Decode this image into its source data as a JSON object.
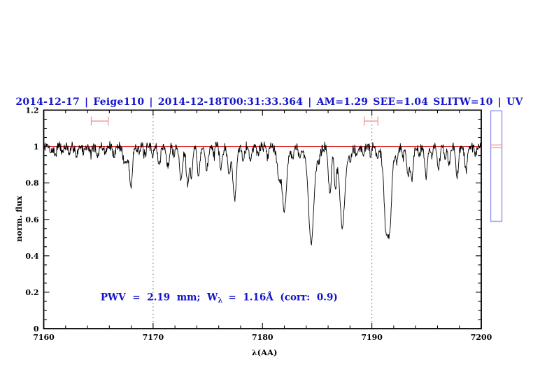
{
  "header": {
    "title": "2014-12-17 | Feige110 | 2014-12-18T00:31:33.364 | AM=1.29 SEE=1.04 SLITW=10 | UV",
    "title_color": "#1414cc"
  },
  "chart_data": {
    "type": "line",
    "title": "2014-12-17 | Feige110 | 2014-12-18T00:31:33.364 | AM=1.29 SEE=1.04 SLITW=10 | UV",
    "title_color": "#1414cc",
    "xlabel": "λ(AA)",
    "ylabel": "norm. flux",
    "xlim": [
      7160,
      7200
    ],
    "ylim": [
      0,
      1.2
    ],
    "x_major_ticks": [
      7160,
      7170,
      7180,
      7190,
      7200
    ],
    "x_tick_labels": [
      "7160",
      "7170",
      "7180",
      "7190",
      "7200"
    ],
    "x_minor_step": 2,
    "y_major_ticks": [
      0,
      0.2,
      0.4,
      0.6,
      0.8,
      1,
      1.2
    ],
    "y_tick_labels": [
      "0",
      "0.2",
      "0.4",
      "0.6",
      "0.8",
      "1",
      "1.2"
    ],
    "y_minor_step": 0.05,
    "grid": false,
    "line_color": "#000000",
    "continuum": {
      "y": 1.0,
      "color": "#e03535"
    },
    "dotted_guides_x": [
      7170,
      7190
    ],
    "noise_amplitude": 0.036,
    "absorption_lines": [
      [
        7160.7,
        0.03,
        0.1
      ],
      [
        7161.05,
        0.045,
        0.1
      ],
      [
        7161.7,
        0.03,
        0.09
      ],
      [
        7162.35,
        0.05,
        0.1
      ],
      [
        7163.0,
        0.05,
        0.1
      ],
      [
        7163.65,
        0.03,
        0.09
      ],
      [
        7164.3,
        0.04,
        0.09
      ],
      [
        7164.9,
        0.065,
        0.11
      ],
      [
        7165.6,
        0.035,
        0.09
      ],
      [
        7166.4,
        0.05,
        0.11
      ],
      [
        7167.35,
        0.09,
        0.11
      ],
      [
        7167.6,
        0.08,
        0.1
      ],
      [
        7167.97,
        0.225,
        0.13
      ],
      [
        7168.75,
        0.025,
        0.08
      ],
      [
        7169.25,
        0.05,
        0.11
      ],
      [
        7169.95,
        0.04,
        0.09
      ],
      [
        7170.55,
        0.095,
        0.13
      ],
      [
        7171.35,
        0.11,
        0.13
      ],
      [
        7171.9,
        0.04,
        0.09
      ],
      [
        7172.55,
        0.18,
        0.14
      ],
      [
        7173.15,
        0.2,
        0.12
      ],
      [
        7173.5,
        0.17,
        0.11
      ],
      [
        7174.15,
        0.165,
        0.12
      ],
      [
        7174.9,
        0.135,
        0.12
      ],
      [
        7175.55,
        0.05,
        0.09
      ],
      [
        7176.2,
        0.125,
        0.12
      ],
      [
        7176.95,
        0.15,
        0.13
      ],
      [
        7177.45,
        0.285,
        0.16
      ],
      [
        7178.25,
        0.065,
        0.1
      ],
      [
        7178.9,
        0.075,
        0.11
      ],
      [
        7179.55,
        0.045,
        0.09
      ],
      [
        7180.45,
        0.05,
        0.09
      ],
      [
        7181.5,
        0.15,
        0.15
      ],
      [
        7182.0,
        0.29,
        0.18
      ],
      [
        7182.0,
        0.065,
        0.4
      ],
      [
        7182.75,
        0.04,
        0.09
      ],
      [
        7183.4,
        0.055,
        0.1
      ],
      [
        7184.45,
        0.43,
        0.22
      ],
      [
        7184.45,
        0.1,
        0.5
      ],
      [
        7185.15,
        0.05,
        0.09
      ],
      [
        7186.15,
        0.26,
        0.13
      ],
      [
        7186.65,
        0.21,
        0.11
      ],
      [
        7187.3,
        0.36,
        0.2
      ],
      [
        7187.3,
        0.09,
        0.45
      ],
      [
        7188.05,
        0.06,
        0.1
      ],
      [
        7188.6,
        0.05,
        0.09
      ],
      [
        7189.2,
        0.05,
        0.09
      ],
      [
        7189.9,
        0.04,
        0.08
      ],
      [
        7190.5,
        0.05,
        0.09
      ],
      [
        7191.3,
        0.36,
        0.18
      ],
      [
        7191.65,
        0.33,
        0.15
      ],
      [
        7191.45,
        0.1,
        0.45
      ],
      [
        7192.3,
        0.07,
        0.1
      ],
      [
        7192.85,
        0.055,
        0.09
      ],
      [
        7193.3,
        0.16,
        0.12
      ],
      [
        7193.65,
        0.19,
        0.12
      ],
      [
        7194.35,
        0.05,
        0.09
      ],
      [
        7194.95,
        0.16,
        0.12
      ],
      [
        7195.5,
        0.06,
        0.09
      ],
      [
        7196.1,
        0.115,
        0.11
      ],
      [
        7196.7,
        0.07,
        0.1
      ],
      [
        7197.05,
        0.11,
        0.1
      ],
      [
        7197.8,
        0.17,
        0.12
      ],
      [
        7198.6,
        0.13,
        0.11
      ],
      [
        7199.5,
        0.055,
        0.09
      ]
    ],
    "major_absorption_minima": [
      {
        "wavelength": 7167.97,
        "flux": 0.78
      },
      {
        "wavelength": 7172.6,
        "flux": 0.82
      },
      {
        "wavelength": 7173.3,
        "flux": 0.79
      },
      {
        "wavelength": 7177.45,
        "flux": 0.72
      },
      {
        "wavelength": 7182.0,
        "flux": 0.65
      },
      {
        "wavelength": 7184.45,
        "flux": 0.47
      },
      {
        "wavelength": 7186.2,
        "flux": 0.74
      },
      {
        "wavelength": 7187.3,
        "flux": 0.55
      },
      {
        "wavelength": 7191.4,
        "flux": 0.52
      },
      {
        "wavelength": 7193.6,
        "flux": 0.76
      },
      {
        "wavelength": 7195.0,
        "flux": 0.83
      },
      {
        "wavelength": 7197.8,
        "flux": 0.83
      }
    ],
    "range_markers": [
      {
        "x1": 7164.35,
        "x2": 7165.9,
        "y": 1.14,
        "color": "#f29d9d"
      },
      {
        "x1": 7189.3,
        "x2": 7190.55,
        "y": 1.14,
        "color": "#f29d9d"
      }
    ],
    "annotation": {
      "text_head": "PWV = 2.19 mm; W",
      "subscript": "λ",
      "text_tail": "= 1.16Å (corr: 0.9)",
      "x": 7165.2,
      "y": 0.155,
      "color": "#1414cc"
    }
  },
  "side_panel": {
    "border_color": "#9c9cf0",
    "marker_color": "#f09c9c"
  }
}
